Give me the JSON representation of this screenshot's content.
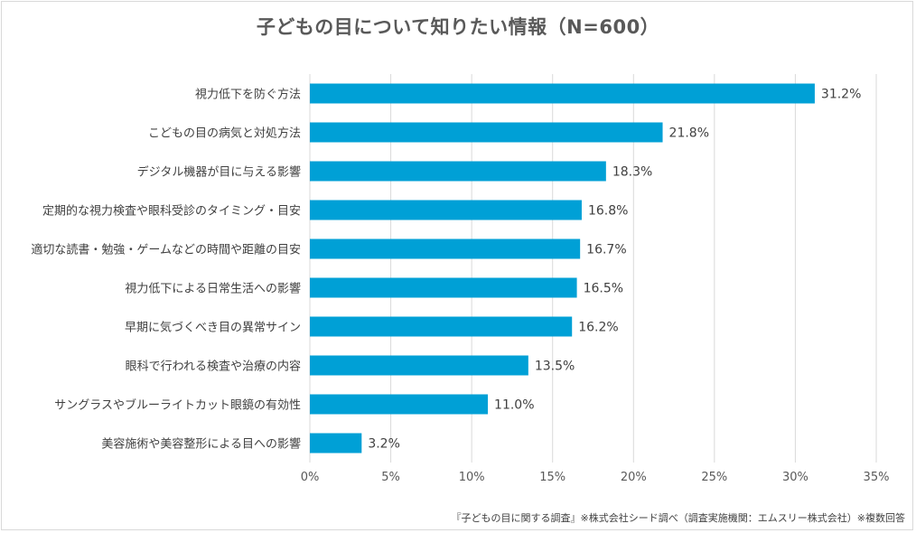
{
  "chart_data": {
    "type": "bar",
    "orientation": "horizontal",
    "title": "子どもの目について知りたい情報（N=600）",
    "categories": [
      "視力低下を防ぐ方法",
      "こどもの目の病気と対処方法",
      "デジタル機器が目に与える影響",
      "定期的な視力検査や眼科受診のタイミング・目安",
      "適切な読書・勉強・ゲームなどの時間や距離の目安",
      "視力低下による日常生活への影響",
      "早期に気づくべき目の異常サイン",
      "眼科で行われる検査や治療の内容",
      "サングラスやブルーライトカット眼鏡の有効性",
      "美容施術や美容整形による目への影響"
    ],
    "values": [
      31.2,
      21.8,
      18.3,
      16.8,
      16.7,
      16.5,
      16.2,
      13.5,
      11.0,
      3.2
    ],
    "value_labels": [
      "31.2%",
      "21.8%",
      "18.3%",
      "16.8%",
      "16.7%",
      "16.5%",
      "16.2%",
      "13.5%",
      "11.0%",
      "3.2%"
    ],
    "xlim": [
      0,
      35
    ],
    "xticks": [
      0,
      5,
      10,
      15,
      20,
      25,
      30,
      35
    ],
    "xtick_labels": [
      "0%",
      "5%",
      "10%",
      "15%",
      "20%",
      "25%",
      "30%",
      "35%"
    ],
    "grid": true,
    "bar_color": "#00a0d6",
    "grid_color": "#d9d9d9"
  },
  "footnote": "『子どもの目に関する調査』※株式会社シード調べ（調査実施機関：エムスリー株式会社）※複数回答"
}
